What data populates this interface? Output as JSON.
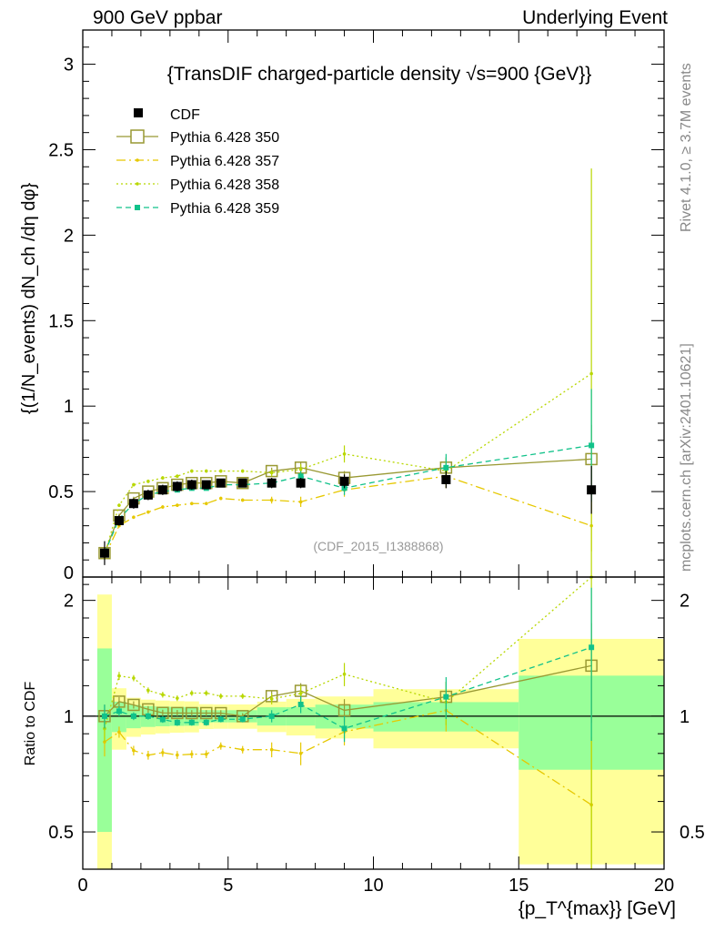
{
  "header": {
    "left": "900 GeV ppbar",
    "right": "Underlying Event"
  },
  "side_labels": {
    "rivet": "Rivet 4.1.0, ≥ 3.7M events",
    "mcplots": "mcplots.cern.ch [arXiv:2401.10621]"
  },
  "chart_data": {
    "type": "line",
    "title": "{TransDIF charged-particle density √s=900 {GeV}}",
    "analysis_tag": "(CDF_2015_I1388868)",
    "xlabel": "{p_T^{max}} [GeV]",
    "ylabel": "{(1/N_events) dN_ch /dη dφ}",
    "ratio_ylabel": "Ratio to CDF",
    "xlim": [
      0,
      20
    ],
    "ylim": [
      0,
      3.2
    ],
    "ratio_ylim": [
      0.4,
      2.3
    ],
    "x_ticks": [
      "0",
      "5",
      "10",
      "15",
      "20"
    ],
    "y_ticks": [
      "0",
      "0.5",
      "1",
      "1.5",
      "2",
      "2.5",
      "3"
    ],
    "ratio_ticks": [
      "0.5",
      "1",
      "2"
    ],
    "x": [
      0.75,
      1.25,
      1.75,
      2.25,
      2.75,
      3.25,
      3.75,
      4.25,
      4.75,
      5.5,
      6.5,
      7.5,
      9.0,
      12.5,
      17.5
    ],
    "bin_edges": [
      0.5,
      1.0,
      1.5,
      2.0,
      2.5,
      3.0,
      3.5,
      4.0,
      4.5,
      5.0,
      6.0,
      7.0,
      8.0,
      10.0,
      15.0,
      20.0
    ],
    "data": {
      "name": "CDF",
      "values": [
        0.14,
        0.33,
        0.43,
        0.48,
        0.51,
        0.53,
        0.54,
        0.54,
        0.55,
        0.55,
        0.55,
        0.55,
        0.56,
        0.57,
        0.51
      ],
      "band_yellow": [
        0.15,
        0.06,
        0.05,
        0.05,
        0.05,
        0.05,
        0.05,
        0.04,
        0.04,
        0.04,
        0.05,
        0.06,
        0.07,
        0.1,
        0.3
      ],
      "band_green": [
        0.07,
        0.03,
        0.03,
        0.03,
        0.03,
        0.03,
        0.03,
        0.02,
        0.02,
        0.02,
        0.03,
        0.03,
        0.04,
        0.05,
        0.14
      ]
    },
    "series": [
      {
        "name": "Pythia 6.428 350",
        "color": "#999933",
        "style": "solid-opensquare",
        "values": [
          0.14,
          0.36,
          0.46,
          0.5,
          0.52,
          0.54,
          0.55,
          0.55,
          0.56,
          0.55,
          0.62,
          0.64,
          0.58,
          0.64,
          0.69
        ],
        "errors": [
          0.01,
          0.01,
          0.01,
          0.01,
          0.01,
          0.01,
          0.01,
          0.01,
          0.01,
          0.01,
          0.02,
          0.03,
          0.04,
          0.06,
          0.2
        ]
      },
      {
        "name": "Pythia 6.428 357",
        "color": "#e6c800",
        "style": "dashdot",
        "values": [
          0.12,
          0.3,
          0.35,
          0.38,
          0.41,
          0.42,
          0.43,
          0.43,
          0.46,
          0.45,
          0.45,
          0.44,
          0.51,
          0.59,
          0.3
        ],
        "errors": [
          0.01,
          0.01,
          0.01,
          0.01,
          0.01,
          0.01,
          0.01,
          0.01,
          0.01,
          0.01,
          0.02,
          0.03,
          0.04,
          0.07,
          0.15
        ]
      },
      {
        "name": "Pythia 6.428 358",
        "color": "#b8d700",
        "style": "dotted",
        "values": [
          0.13,
          0.42,
          0.54,
          0.56,
          0.58,
          0.59,
          0.62,
          0.62,
          0.62,
          0.62,
          0.61,
          0.63,
          0.72,
          0.62,
          1.19
        ],
        "errors": [
          0.01,
          0.01,
          0.01,
          0.01,
          0.01,
          0.01,
          0.01,
          0.01,
          0.01,
          0.01,
          0.02,
          0.03,
          0.05,
          0.08,
          1.2
        ]
      },
      {
        "name": "Pythia 6.428 359",
        "color": "#11c28a",
        "style": "dashed-filledsquare",
        "values": [
          0.14,
          0.34,
          0.43,
          0.48,
          0.5,
          0.51,
          0.52,
          0.52,
          0.54,
          0.54,
          0.55,
          0.59,
          0.52,
          0.64,
          0.77
        ],
        "errors": [
          0.01,
          0.01,
          0.01,
          0.01,
          0.01,
          0.01,
          0.01,
          0.01,
          0.01,
          0.01,
          0.02,
          0.03,
          0.04,
          0.08,
          0.33
        ]
      }
    ]
  }
}
